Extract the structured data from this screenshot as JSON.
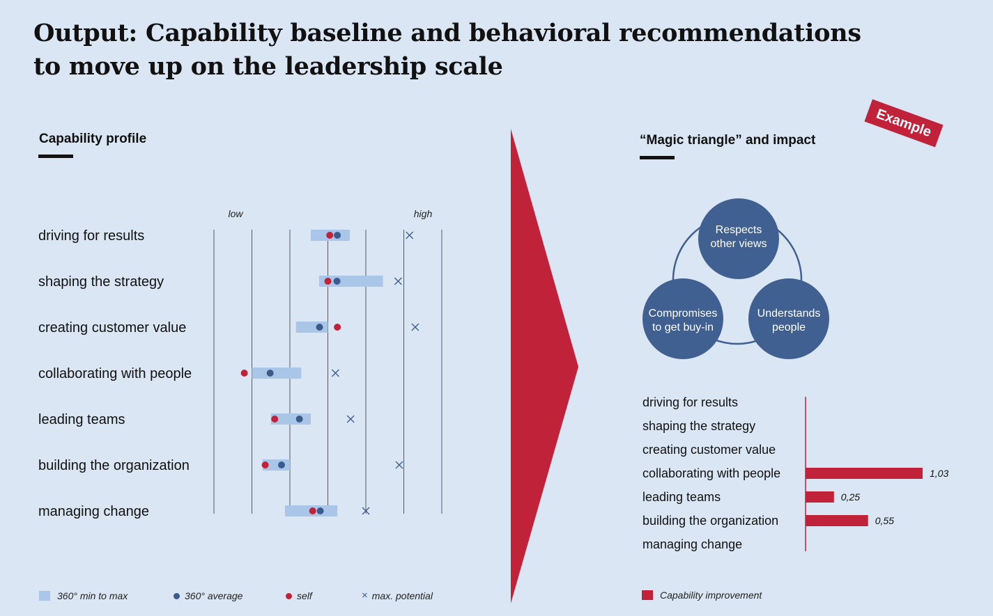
{
  "title": {
    "line1": "Output: Capability baseline and behavioral recommendations",
    "line2": "to move up on the leadership scale"
  },
  "badge": "Example",
  "colors": {
    "background": "#dae6f3",
    "range_bar": "#a9c6e8",
    "average": "#3b5b8c",
    "self": "#c0223a",
    "potential": "#3b5b8c",
    "accent_red": "#c0223a",
    "circle_fill": "#3f6090"
  },
  "capability_profile": {
    "title": "Capability profile",
    "legend": {
      "range": "360° min to max",
      "average": "360° average",
      "self": "self",
      "potential": "max. potential"
    }
  },
  "magic_triangle": {
    "title": "“Magic triangle” and impact",
    "circles": [
      {
        "line1": "Respects",
        "line2": "other views"
      },
      {
        "line1": "Compromises",
        "line2": "to get buy-in"
      },
      {
        "line1": "Understands",
        "line2": "people"
      }
    ],
    "legend": "Capability improvement"
  },
  "chart_data": [
    {
      "type": "scatter",
      "title": "Capability profile",
      "axis_labels": {
        "low": "low",
        "high": "high"
      },
      "xlim": [
        0,
        6
      ],
      "grid": true,
      "categories": [
        "driving for results",
        "shaping the strategy",
        "creating customer value",
        "collaborating with people",
        "leading teams",
        "building the organization",
        "managing change"
      ],
      "range_min": [
        2.55,
        2.77,
        2.16,
        1.0,
        1.5,
        1.28,
        1.87
      ],
      "range_max": [
        3.58,
        4.45,
        3.0,
        2.3,
        2.55,
        2.0,
        3.25
      ],
      "average": [
        3.25,
        3.24,
        2.78,
        1.48,
        2.25,
        1.78,
        2.8
      ],
      "self": [
        3.05,
        3.0,
        3.25,
        0.8,
        1.6,
        1.35,
        2.6
      ],
      "max_potential": [
        5.15,
        4.85,
        5.3,
        3.2,
        3.6,
        4.88,
        4.0
      ],
      "legend": [
        "360° min to max",
        "360° average",
        "self",
        "max. potential"
      ]
    },
    {
      "type": "bar",
      "orientation": "horizontal",
      "categories": [
        "driving for results",
        "shaping the strategy",
        "creating customer value",
        "collaborating with people",
        "leading teams",
        "building the organization",
        "managing change"
      ],
      "values": [
        null,
        null,
        null,
        1.03,
        0.25,
        0.55,
        null
      ],
      "value_labels": [
        "",
        "",
        "",
        "1,03",
        "0,25",
        "0,55",
        ""
      ],
      "xlim": [
        0,
        1.03
      ],
      "legend": [
        "Capability improvement"
      ]
    }
  ]
}
